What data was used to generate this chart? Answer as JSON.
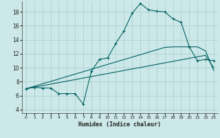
{
  "title": "",
  "xlabel": "Humidex (Indice chaleur)",
  "xlim": [
    -0.5,
    23.5
  ],
  "ylim": [
    3.5,
    19.5
  ],
  "xticks": [
    0,
    1,
    2,
    3,
    4,
    5,
    6,
    7,
    8,
    9,
    10,
    11,
    12,
    13,
    14,
    15,
    16,
    17,
    18,
    19,
    20,
    21,
    22,
    23
  ],
  "yticks": [
    4,
    6,
    8,
    10,
    12,
    14,
    16,
    18
  ],
  "bg_color": "#cce8e8",
  "line_color": "#006060",
  "grid_color": "#a8cccc",
  "curve1_x": [
    0,
    1,
    2,
    3,
    4,
    5,
    6,
    7,
    8,
    9,
    10,
    11,
    12,
    13,
    14,
    15,
    16,
    17,
    18,
    19,
    20,
    21,
    22,
    23
  ],
  "curve1_y": [
    7.0,
    7.2,
    7.1,
    7.1,
    6.3,
    6.3,
    6.3,
    4.8,
    9.5,
    11.2,
    11.4,
    13.5,
    15.3,
    17.8,
    19.2,
    18.3,
    18.1,
    18.0,
    17.0,
    16.5,
    13.0,
    11.0,
    11.2,
    11.0
  ],
  "curve2_x": [
    0,
    1,
    2,
    3,
    4,
    5,
    6,
    7,
    8,
    9,
    10,
    11,
    12,
    13,
    14,
    15,
    16,
    17,
    18,
    19,
    20,
    21,
    22,
    23
  ],
  "curve2_y": [
    7.0,
    7.22,
    7.43,
    7.65,
    7.87,
    8.09,
    8.3,
    8.52,
    8.74,
    8.96,
    9.17,
    9.39,
    9.61,
    9.83,
    10.04,
    10.26,
    10.48,
    10.7,
    10.91,
    11.13,
    11.35,
    11.57,
    11.78,
    10.0
  ],
  "curve3_x": [
    0,
    1,
    2,
    3,
    4,
    5,
    6,
    7,
    8,
    9,
    10,
    11,
    12,
    13,
    14,
    15,
    16,
    17,
    18,
    19,
    20,
    21,
    22,
    23
  ],
  "curve3_y": [
    7.0,
    7.35,
    7.7,
    8.04,
    8.39,
    8.74,
    9.09,
    9.43,
    9.78,
    10.13,
    10.48,
    10.83,
    11.17,
    11.52,
    11.87,
    12.22,
    12.57,
    12.91,
    13.0,
    13.0,
    13.0,
    13.0,
    12.4,
    9.6
  ]
}
